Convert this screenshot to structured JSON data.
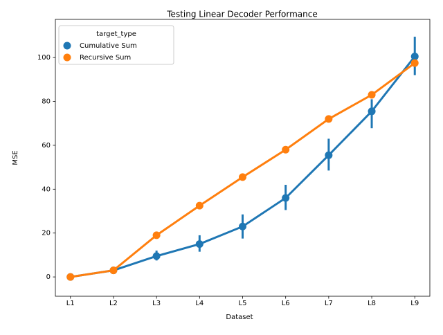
{
  "chart_data": {
    "type": "pointplot",
    "title": "Testing Linear Decoder Performance",
    "x_label": "Dataset",
    "y_label": "MSE",
    "categories": [
      "L1",
      "L2",
      "L3",
      "L4",
      "L5",
      "L6",
      "L7",
      "L8",
      "L9"
    ],
    "legend_title": "target_type",
    "legend_position": "upper left",
    "ylim": [
      -8.8,
      117.4
    ],
    "yticks": [
      0,
      20,
      40,
      60,
      80,
      100
    ],
    "series": [
      {
        "name": "Cumulative Sum",
        "color": "#1f77b4",
        "values": [
          0,
          3,
          9.5,
          15,
          23,
          36,
          55.5,
          75.5,
          100.5
        ],
        "ci_low": [
          null,
          null,
          7.5,
          11.5,
          17.5,
          30.5,
          48.5,
          67.8,
          92
        ],
        "ci_high": [
          null,
          null,
          12,
          19,
          28.5,
          42,
          63,
          81,
          109.5
        ]
      },
      {
        "name": "Recursive Sum",
        "color": "#ff7f0e",
        "values": [
          0,
          3,
          19,
          32.5,
          45.5,
          58,
          72,
          83,
          97.5
        ]
      }
    ]
  }
}
